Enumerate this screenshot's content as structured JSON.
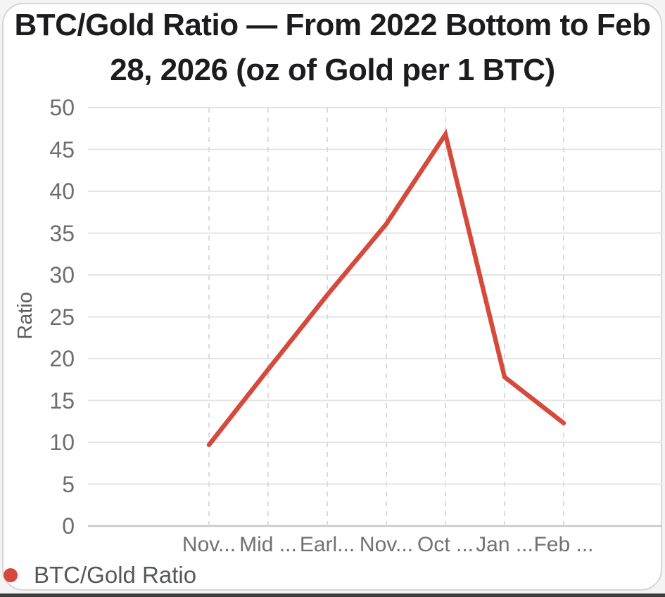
{
  "card": {
    "title_line1": "BTC/Gold Ratio — From 2022 Bottom to Feb",
    "title_line2": "28, 2026 (oz of Gold per 1 BTC)"
  },
  "legend": {
    "label": "BTC/Gold Ratio",
    "marker_color": "#d54a3c"
  },
  "chart_data": {
    "type": "line",
    "title": "BTC/Gold Ratio — From 2022 Bottom to Feb 28, 2026 (oz of Gold per 1 BTC)",
    "categories": [
      "Nov...",
      "Mid ...",
      "Earl...",
      "Nov...",
      "Oct ...",
      "Jan ...",
      "Feb ..."
    ],
    "series": [
      {
        "name": "BTC/Gold Ratio",
        "color": "#d54a3c",
        "values": [
          9.7,
          18.7,
          27.6,
          36.1,
          46.8,
          17.8,
          12.3
        ]
      }
    ],
    "xlabel": "",
    "ylabel": "Ratio",
    "ylim": [
      0,
      50
    ],
    "yticks": [
      0,
      5,
      10,
      15,
      20,
      25,
      30,
      35,
      40,
      45,
      50
    ],
    "grid": {
      "horizontal": "solid",
      "vertical": "dashed"
    },
    "legend_position": "bottom-left",
    "line_width": 6.5
  }
}
